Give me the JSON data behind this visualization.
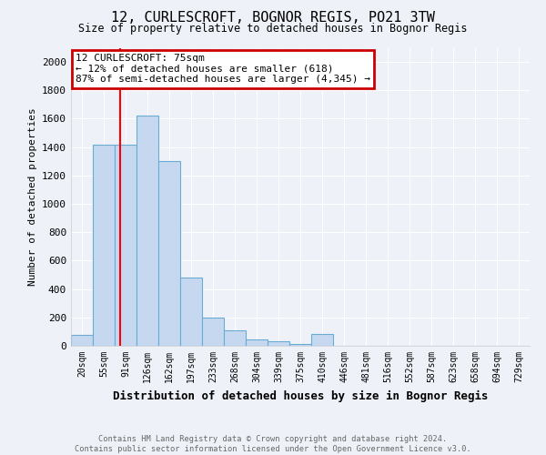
{
  "title1": "12, CURLESCROFT, BOGNOR REGIS, PO21 3TW",
  "title2": "Size of property relative to detached houses in Bognor Regis",
  "xlabel": "Distribution of detached houses by size in Bognor Regis",
  "ylabel": "Number of detached properties",
  "bin_labels": [
    "20sqm",
    "55sqm",
    "91sqm",
    "126sqm",
    "162sqm",
    "197sqm",
    "233sqm",
    "268sqm",
    "304sqm",
    "339sqm",
    "375sqm",
    "410sqm",
    "446sqm",
    "481sqm",
    "516sqm",
    "552sqm",
    "587sqm",
    "623sqm",
    "658sqm",
    "694sqm",
    "729sqm"
  ],
  "bar_values": [
    80,
    1420,
    1420,
    1620,
    1300,
    480,
    200,
    108,
    42,
    30,
    15,
    85,
    0,
    0,
    0,
    0,
    0,
    0,
    0,
    0,
    0
  ],
  "bar_color": "#c5d8f0",
  "bar_edge_color": "#6aaad4",
  "red_line_x": 1.75,
  "annotation_text": "12 CURLESCROFT: 75sqm\n← 12% of detached houses are smaller (618)\n87% of semi-detached houses are larger (4,345) →",
  "annotation_box_color": "#ffffff",
  "annotation_box_edge_color": "#cc0000",
  "footer_text": "Contains HM Land Registry data © Crown copyright and database right 2024.\nContains public sector information licensed under the Open Government Licence v3.0.",
  "ylim": [
    0,
    2100
  ],
  "yticks": [
    0,
    200,
    400,
    600,
    800,
    1000,
    1200,
    1400,
    1600,
    1800,
    2000
  ],
  "background_color": "#eef2f8",
  "grid_color": "#ffffff",
  "spine_color": "#cccccc"
}
